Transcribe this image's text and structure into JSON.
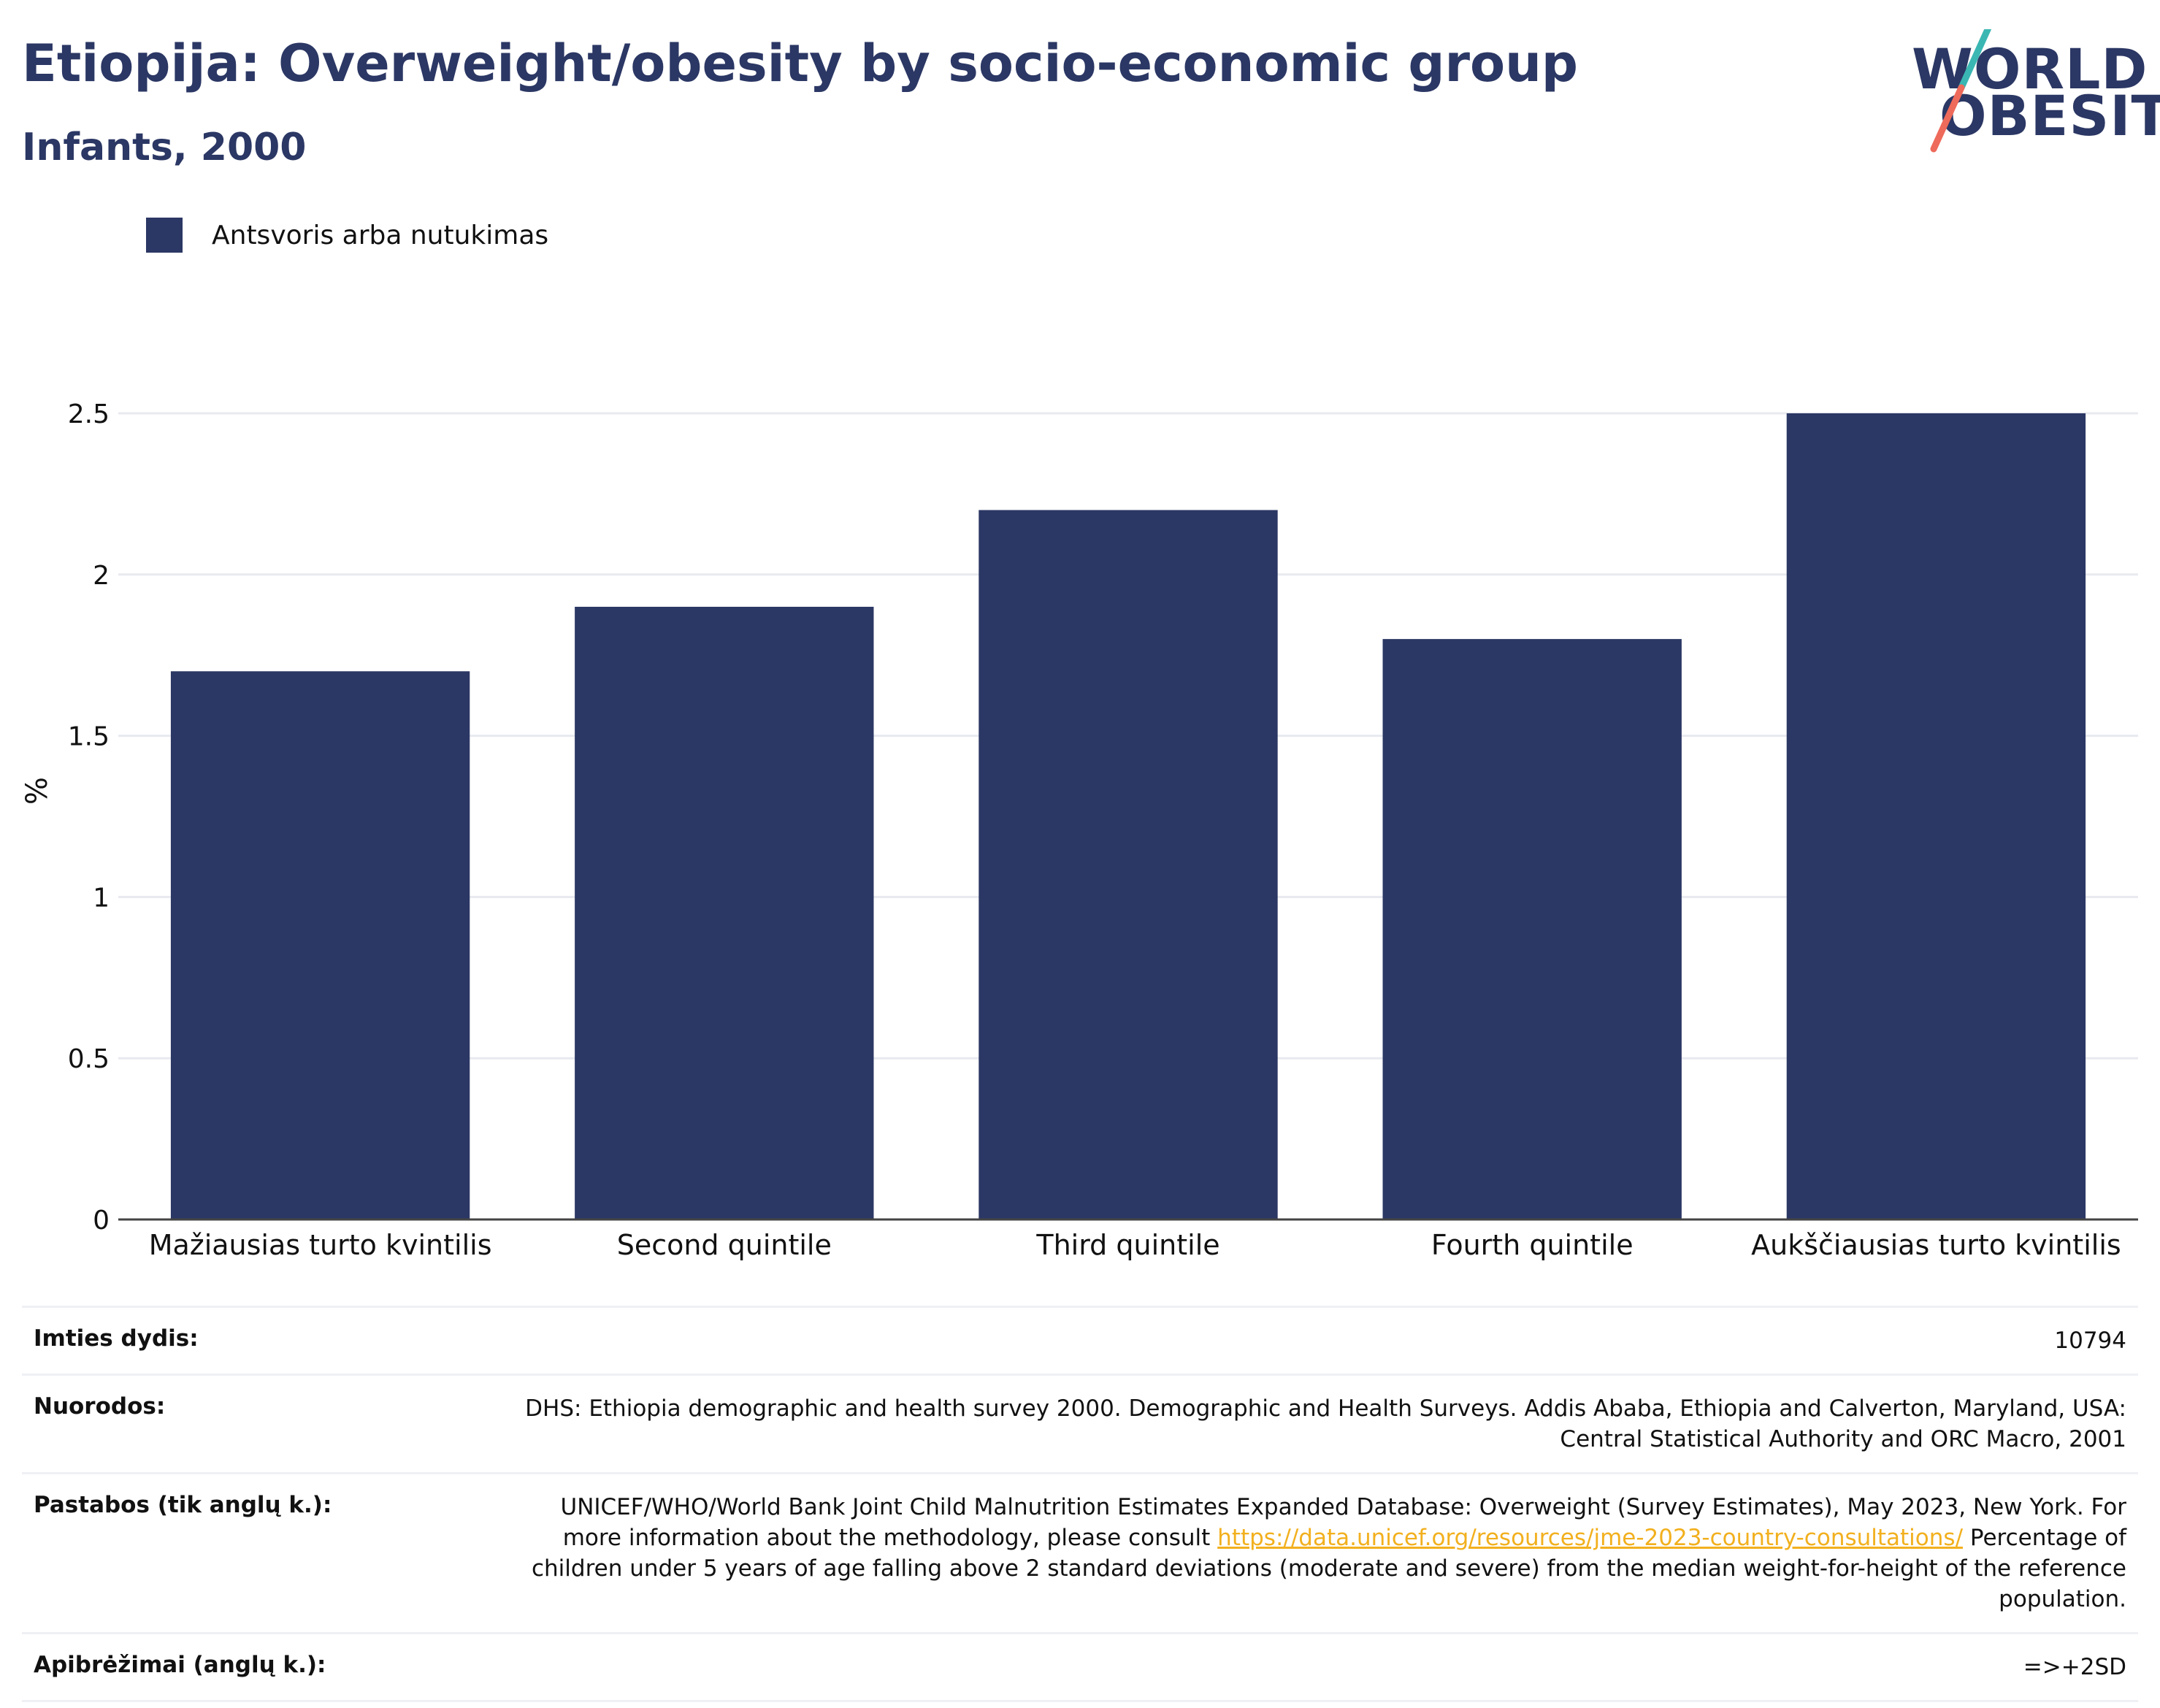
{
  "header": {
    "title": "Etiopija: Overweight/obesity by socio-economic group",
    "subtitle": "Infants, 2000"
  },
  "logo": {
    "line1": "WORLD",
    "line2": "OBESITY",
    "colors": {
      "text": "#2b3764",
      "slash_top": "#3ab7b3",
      "slash_bottom": "#ee6a5a"
    }
  },
  "legend": {
    "label": "Antsvoris arba nutukimas",
    "color": "#2b3764"
  },
  "chart_data": {
    "type": "bar",
    "categories": [
      "Mažiausias turto kvintilis",
      "Second quintile",
      "Third quintile",
      "Fourth quintile",
      "Aukščiausias turto kvintilis"
    ],
    "series": [
      {
        "name": "Antsvoris arba nutukimas",
        "values": [
          1.7,
          1.9,
          2.2,
          1.8,
          2.5
        ],
        "color": "#2b3764"
      }
    ],
    "ylabel": "%",
    "xlabel": "",
    "ylim": [
      0,
      2.5
    ],
    "yticks": [
      "0",
      "0.5",
      "1",
      "1.5",
      "2",
      "2.5"
    ],
    "grid": true,
    "legend_position": "top-left"
  },
  "info": {
    "sample_size": {
      "label": "Imties dydis:",
      "value": "10794"
    },
    "references": {
      "label": "Nuorodos:",
      "value": "DHS: Ethiopia demographic and health survey 2000. Demographic and Health Surveys. Addis Ababa, Ethiopia and Calverton, Maryland, USA: Central Statistical Authority and ORC Macro, 2001"
    },
    "notes": {
      "label": "Pastabos (tik anglų k.):",
      "text_before": "UNICEF/WHO/World Bank Joint Child Malnutrition Estimates Expanded Database: Overweight (Survey Estimates), May 2023, New York. For more information about the methodology, please consult",
      "link": "https://data.unicef.org/resources/jme-2023-country-consultations/",
      "text_after": "Percentage of children under 5 years of age falling above 2 standard deviations (moderate and severe) from the median weight-for-height of the reference population."
    },
    "definitions": {
      "label": "Apibrėžimai (anglų k.):",
      "value": "=>+2SD"
    }
  }
}
